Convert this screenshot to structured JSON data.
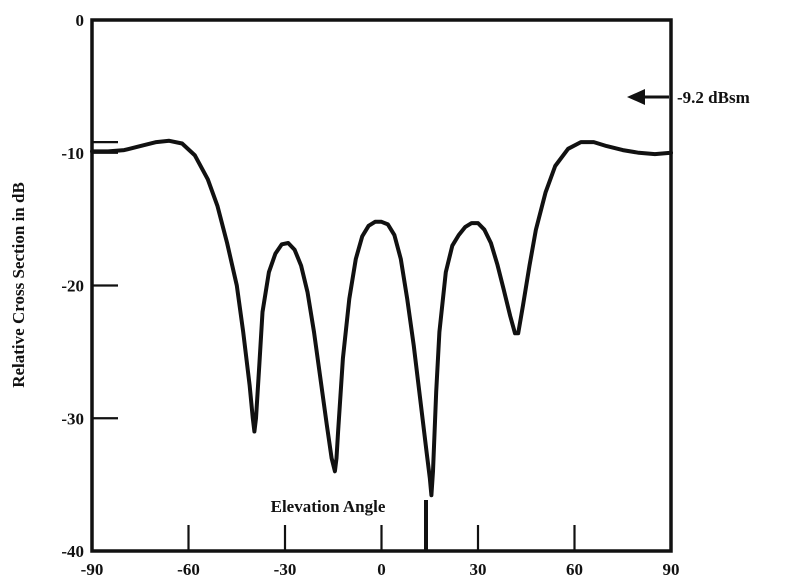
{
  "chart_data": {
    "type": "line",
    "title": "",
    "xlabel": "Elevation Angle",
    "ylabel": "Relative Cross Section in dB",
    "xlim": [
      -90,
      90
    ],
    "ylim": [
      -40,
      0
    ],
    "x_ticks": [
      -90,
      -60,
      -30,
      0,
      30,
      60,
      90
    ],
    "x_tick_labels": [
      "-90",
      "-60",
      "-30",
      "0",
      "30",
      "60",
      "90"
    ],
    "y_ticks": [
      0,
      -10,
      -20,
      -30,
      -40
    ],
    "y_tick_labels": [
      "0",
      "-10",
      "-20",
      "-30",
      "-40"
    ],
    "grid": false,
    "annotation": {
      "text": "-9.2 dBsm",
      "value": -9.2
    },
    "series": [
      {
        "x": [
          -90,
          -85,
          -80,
          -75,
          -70,
          -66,
          -62,
          -58,
          -54,
          -51,
          -48,
          -45,
          -43,
          -41,
          -40,
          -39.5,
          -39,
          -38,
          -37,
          -35,
          -33,
          -31,
          -29,
          -27,
          -25,
          -23,
          -21,
          -19,
          -17,
          -15.5,
          -14.5,
          -14,
          -13.5,
          -12,
          -10,
          -8,
          -6,
          -4,
          -2,
          0,
          2,
          4,
          6,
          8,
          10,
          12,
          14,
          15,
          15.5,
          16,
          17,
          18,
          20,
          22,
          24,
          26,
          28,
          30,
          32,
          34,
          36,
          38,
          40,
          41.5,
          42.5,
          44,
          46,
          48,
          51,
          54,
          58,
          62,
          66,
          70,
          75,
          80,
          85,
          90
        ],
        "y": [
          -9.9,
          -9.9,
          -9.8,
          -9.5,
          -9.2,
          -9.1,
          -9.3,
          -10.2,
          -12.0,
          -14.0,
          -16.8,
          -20.0,
          -23.5,
          -27.5,
          -30.0,
          -31.0,
          -30.0,
          -26.0,
          -22.0,
          -19.0,
          -17.6,
          -16.9,
          -16.8,
          -17.3,
          -18.5,
          -20.5,
          -23.5,
          -27.0,
          -30.5,
          -33.0,
          -34.0,
          -33.0,
          -31.0,
          -25.5,
          -21.0,
          -18.0,
          -16.3,
          -15.5,
          -15.2,
          -15.2,
          -15.4,
          -16.2,
          -18.0,
          -21.0,
          -24.5,
          -28.5,
          -32.5,
          -34.5,
          -35.8,
          -34.0,
          -28.0,
          -23.5,
          -19.0,
          -17.0,
          -16.2,
          -15.6,
          -15.3,
          -15.3,
          -15.8,
          -16.8,
          -18.4,
          -20.3,
          -22.3,
          -23.6,
          -23.6,
          -21.5,
          -18.5,
          -15.8,
          -13.0,
          -11.0,
          -9.7,
          -9.2,
          -9.2,
          -9.5,
          -9.8,
          -10.0,
          -10.1,
          -10.0
        ]
      }
    ]
  }
}
